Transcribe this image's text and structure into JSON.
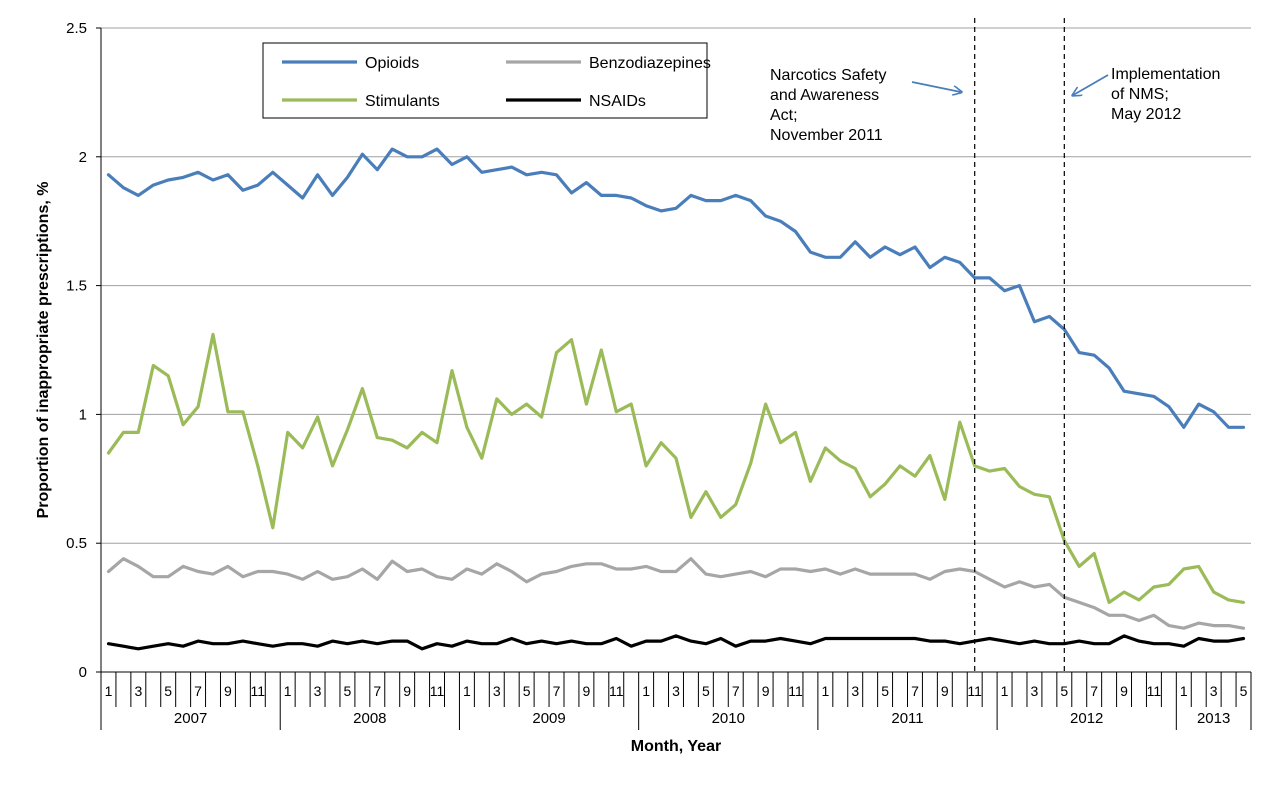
{
  "chart_data": {
    "type": "line",
    "title": "",
    "xlabel": "Month, Year",
    "ylabel": "Proportion of inappropriate prescriptions, %",
    "ylim": [
      0,
      2.5
    ],
    "yticks": [
      "0",
      "0.5",
      "1",
      "1.5",
      "2",
      "2.5"
    ],
    "grid": true,
    "legend_position": "top-left",
    "x_start": "2007-01",
    "month_tick_labels": [
      "1",
      "3",
      "5",
      "7",
      "9",
      "11"
    ],
    "years": [
      {
        "label": "2007",
        "months": 12
      },
      {
        "label": "2008",
        "months": 12
      },
      {
        "label": "2009",
        "months": 12
      },
      {
        "label": "2010",
        "months": 12
      },
      {
        "label": "2011",
        "months": 12
      },
      {
        "label": "2012",
        "months": 12
      },
      {
        "label": "2013",
        "months": 5
      }
    ],
    "series": [
      {
        "name": "Opioids",
        "color": "#4a7ebb",
        "values": [
          1.93,
          1.88,
          1.85,
          1.89,
          1.91,
          1.92,
          1.94,
          1.91,
          1.93,
          1.87,
          1.89,
          1.94,
          1.89,
          1.84,
          1.93,
          1.85,
          1.92,
          2.01,
          1.95,
          2.03,
          2.0,
          2.0,
          2.03,
          1.97,
          2.0,
          1.94,
          1.95,
          1.96,
          1.93,
          1.94,
          1.93,
          1.86,
          1.9,
          1.85,
          1.85,
          1.84,
          1.81,
          1.79,
          1.8,
          1.85,
          1.83,
          1.83,
          1.85,
          1.83,
          1.77,
          1.75,
          1.71,
          1.63,
          1.61,
          1.61,
          1.67,
          1.61,
          1.65,
          1.62,
          1.65,
          1.57,
          1.61,
          1.59,
          1.53,
          1.53,
          1.48,
          1.5,
          1.36,
          1.38,
          1.33,
          1.24,
          1.23,
          1.18,
          1.09,
          1.08,
          1.07,
          1.03,
          0.95,
          1.04,
          1.01,
          0.95,
          0.95
        ]
      },
      {
        "name": "Benzodiazepines",
        "color": "#a6a6a6",
        "values": [
          0.39,
          0.44,
          0.41,
          0.37,
          0.37,
          0.41,
          0.39,
          0.38,
          0.41,
          0.37,
          0.39,
          0.39,
          0.38,
          0.36,
          0.39,
          0.36,
          0.37,
          0.4,
          0.36,
          0.43,
          0.39,
          0.4,
          0.37,
          0.36,
          0.4,
          0.38,
          0.42,
          0.39,
          0.35,
          0.38,
          0.39,
          0.41,
          0.42,
          0.42,
          0.4,
          0.4,
          0.41,
          0.39,
          0.39,
          0.44,
          0.38,
          0.37,
          0.38,
          0.39,
          0.37,
          0.4,
          0.4,
          0.39,
          0.4,
          0.38,
          0.4,
          0.38,
          0.38,
          0.38,
          0.38,
          0.36,
          0.39,
          0.4,
          0.39,
          0.36,
          0.33,
          0.35,
          0.33,
          0.34,
          0.29,
          0.27,
          0.25,
          0.22,
          0.22,
          0.2,
          0.22,
          0.18,
          0.17,
          0.19,
          0.18,
          0.18,
          0.17
        ]
      },
      {
        "name": "Stimulants",
        "color": "#9bbb59",
        "values": [
          0.85,
          0.93,
          0.93,
          1.19,
          1.15,
          0.96,
          1.03,
          1.31,
          1.01,
          1.01,
          0.8,
          0.56,
          0.93,
          0.87,
          0.99,
          0.8,
          0.94,
          1.1,
          0.91,
          0.9,
          0.87,
          0.93,
          0.89,
          1.17,
          0.95,
          0.83,
          1.06,
          1.0,
          1.04,
          0.99,
          1.24,
          1.29,
          1.04,
          1.25,
          1.01,
          1.04,
          0.8,
          0.89,
          0.83,
          0.6,
          0.7,
          0.6,
          0.65,
          0.81,
          1.04,
          0.89,
          0.93,
          0.74,
          0.87,
          0.82,
          0.79,
          0.68,
          0.73,
          0.8,
          0.76,
          0.84,
          0.67,
          0.97,
          0.8,
          0.78,
          0.79,
          0.72,
          0.69,
          0.68,
          0.51,
          0.41,
          0.46,
          0.27,
          0.31,
          0.28,
          0.33,
          0.34,
          0.4,
          0.41,
          0.31,
          0.28,
          0.27
        ]
      },
      {
        "name": "NSAIDs",
        "color": "#000000",
        "values": [
          0.11,
          0.1,
          0.09,
          0.1,
          0.11,
          0.1,
          0.12,
          0.11,
          0.11,
          0.12,
          0.11,
          0.1,
          0.11,
          0.11,
          0.1,
          0.12,
          0.11,
          0.12,
          0.11,
          0.12,
          0.12,
          0.09,
          0.11,
          0.1,
          0.12,
          0.11,
          0.11,
          0.13,
          0.11,
          0.12,
          0.11,
          0.12,
          0.11,
          0.11,
          0.13,
          0.1,
          0.12,
          0.12,
          0.14,
          0.12,
          0.11,
          0.13,
          0.1,
          0.12,
          0.12,
          0.13,
          0.12,
          0.11,
          0.13,
          0.13,
          0.13,
          0.13,
          0.13,
          0.13,
          0.13,
          0.12,
          0.12,
          0.11,
          0.12,
          0.13,
          0.12,
          0.11,
          0.12,
          0.11,
          0.11,
          0.12,
          0.11,
          0.11,
          0.14,
          0.12,
          0.11,
          0.11,
          0.1,
          0.13,
          0.12,
          0.12,
          0.13
        ]
      }
    ],
    "events": [
      {
        "label_lines": [
          "Narcotics Safety",
          "and Awareness",
          "Act;",
          "November 2011"
        ],
        "month_index": 58
      },
      {
        "label_lines": [
          "Implementation",
          "of NMS;",
          "May 2012"
        ],
        "month_index": 64
      }
    ]
  }
}
